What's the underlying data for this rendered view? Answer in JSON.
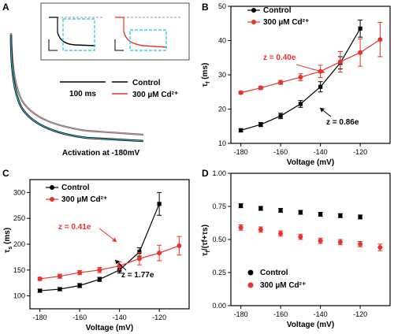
{
  "panel_labels": [
    "A",
    "B",
    "C",
    "D"
  ],
  "panel_a": {
    "scale_bar_label": "100 ms",
    "legend": [
      "Control",
      "300 µM Cd²⁺"
    ],
    "caption": "Activation at -180mV"
  },
  "colors": {
    "control": "#000000",
    "cd": "#e8322d",
    "fit": "#3ad0e0",
    "dash": "#9a9a9a"
  },
  "chart_data": [
    {
      "id": "B",
      "type": "scatter",
      "xlabel": "Voltage (mV)",
      "ylabel": "τ_f (ms)",
      "xlim": [
        -185,
        -105
      ],
      "ylim": [
        10,
        50
      ],
      "xticks": [
        -180,
        -160,
        -140,
        -120
      ],
      "yticks": [
        10,
        20,
        30,
        40,
        50
      ],
      "legend_position": "top-left",
      "series": [
        {
          "name": "Control",
          "x": [
            -180,
            -170,
            -160,
            -150,
            -140,
            -130,
            -120
          ],
          "y": [
            13.8,
            15.5,
            18.0,
            21.5,
            26.5,
            33.5,
            43.5
          ],
          "err": [
            0.5,
            0.6,
            0.8,
            1.0,
            1.5,
            1.8,
            2.5
          ]
        },
        {
          "name": "300 µM Cd²⁺",
          "x": [
            -180,
            -170,
            -160,
            -150,
            -140,
            -130,
            -120,
            -110
          ],
          "y": [
            24.8,
            26.2,
            27.8,
            29.3,
            31.0,
            33.8,
            36.5,
            40.3
          ],
          "err": [
            0.4,
            0.5,
            0.6,
            1.0,
            1.8,
            3.0,
            4.0,
            5.0
          ]
        }
      ],
      "annotations": [
        "z = 0.40e",
        "z = 0.86e"
      ]
    },
    {
      "id": "C",
      "type": "scatter",
      "xlabel": "Voltage (mV)",
      "ylabel": "τ_s (ms)",
      "xlim": [
        -185,
        -105
      ],
      "ylim": [
        75,
        325
      ],
      "xticks": [
        -180,
        -160,
        -140,
        -120
      ],
      "yticks": [
        100,
        150,
        200,
        250,
        300
      ],
      "legend_position": "top-left",
      "series": [
        {
          "name": "Control",
          "x": [
            -180,
            -170,
            -160,
            -150,
            -140,
            -130,
            -120
          ],
          "y": [
            110,
            113,
            120,
            132,
            150,
            185,
            278
          ],
          "err": [
            3,
            3,
            4,
            4,
            6,
            8,
            22
          ]
        },
        {
          "name": "300 µM Cd²⁺",
          "x": [
            -180,
            -170,
            -160,
            -150,
            -140,
            -130,
            -120,
            -110
          ],
          "y": [
            133,
            138,
            145,
            150,
            158,
            172,
            183,
            197
          ],
          "err": [
            3,
            4,
            4,
            5,
            8,
            12,
            15,
            18
          ]
        }
      ],
      "annotations": [
        "z = 0.41e",
        "z = 1.77e"
      ]
    },
    {
      "id": "D",
      "type": "scatter",
      "xlabel": "Voltage (mV)",
      "ylabel": "τ_f/(τ_f+τ_s)",
      "xlim": [
        -185,
        -105
      ],
      "ylim": [
        0.0,
        1.0
      ],
      "xticks": [
        -180,
        -160,
        -140,
        -120
      ],
      "yticks": [
        0.0,
        0.25,
        0.5,
        0.75,
        1.0
      ],
      "legend_position": "bottom-left",
      "series": [
        {
          "name": "Control",
          "x": [
            -180,
            -170,
            -160,
            -150,
            -140,
            -130,
            -120
          ],
          "y": [
            0.755,
            0.735,
            0.72,
            0.705,
            0.69,
            0.68,
            0.67
          ],
          "err": [
            0.015,
            0.015,
            0.015,
            0.015,
            0.015,
            0.015,
            0.015
          ]
        },
        {
          "name": "300 µM Cd²⁺",
          "x": [
            -180,
            -170,
            -160,
            -150,
            -140,
            -130,
            -120,
            -110
          ],
          "y": [
            0.59,
            0.575,
            0.545,
            0.52,
            0.49,
            0.48,
            0.465,
            0.44
          ],
          "err": [
            0.02,
            0.02,
            0.02,
            0.02,
            0.02,
            0.02,
            0.02,
            0.025
          ]
        }
      ],
      "annotations": []
    }
  ]
}
